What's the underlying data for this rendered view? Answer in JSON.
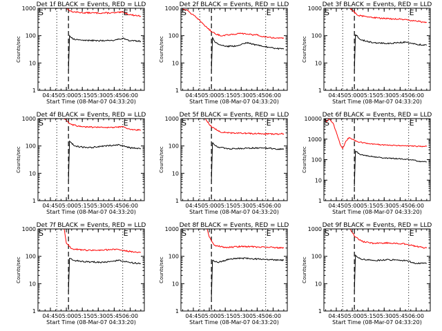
{
  "chart_data": [
    {
      "type": "line",
      "title": "Det 1f BLACK = Events, RED = LLD",
      "xlabel": "Start Time (08-Mar-07 04:33:20)",
      "ylabel": "Counts/sec",
      "ylog": true,
      "ylim": [
        1,
        1000
      ],
      "yticks": [
        "1",
        "10",
        "100",
        "1000"
      ],
      "xlim": [
        "04:33:20",
        "06:13:20"
      ],
      "xticks": [
        "04:45",
        "05:00",
        "05:15",
        "05:30",
        "05:45",
        "06:00"
      ],
      "markers": [
        {
          "label": "S",
          "at": "04:33:20"
        },
        {
          "label": "E",
          "at": "05:53:00"
        }
      ],
      "dotted_lines": [
        "04:51:00",
        "05:53:00"
      ],
      "dashed_line": "05:02:00",
      "grid": false,
      "series": [
        {
          "color": "#ff0000",
          "points": [
            [
              "05:00",
              1000
            ],
            [
              "05:05",
              750
            ],
            [
              "05:15",
              690
            ],
            [
              "05:30",
              670
            ],
            [
              "05:45",
              680
            ],
            [
              "05:53",
              720
            ],
            [
              "06:00",
              580
            ],
            [
              "06:10",
              520
            ]
          ]
        },
        {
          "color": "#000000",
          "points": [
            [
              "05:02",
              5
            ],
            [
              "05:03",
              100
            ],
            [
              "05:06",
              75
            ],
            [
              "05:15",
              68
            ],
            [
              "05:30",
              65
            ],
            [
              "05:45",
              68
            ],
            [
              "05:53",
              80
            ],
            [
              "06:00",
              65
            ],
            [
              "06:10",
              62
            ]
          ]
        }
      ]
    },
    {
      "type": "line",
      "title": "Det 2f BLACK = Events, RED = LLD",
      "xlabel": "Start Time (08-Mar-07 04:33:20)",
      "ylabel": "Counts/sec",
      "ylog": true,
      "ylim": [
        1,
        1000
      ],
      "yticks": [
        "1",
        "10",
        "100",
        "1000"
      ],
      "xlim": [
        "04:33:20",
        "06:13:20"
      ],
      "xticks": [
        "04:45",
        "05:00",
        "05:15",
        "05:30",
        "05:45",
        "06:00"
      ],
      "markers": [
        {
          "label": "S",
          "at": "04:33:20"
        },
        {
          "label": "E",
          "at": "05:53:00"
        }
      ],
      "dotted_lines": [
        "04:51:00",
        "05:53:00"
      ],
      "dashed_line": "05:02:00",
      "grid": false,
      "series": [
        {
          "color": "#ff0000",
          "points": [
            [
              "04:34",
              1000
            ],
            [
              "04:40",
              800
            ],
            [
              "04:48",
              450
            ],
            [
              "04:55",
              250
            ],
            [
              "05:02",
              140
            ],
            [
              "05:10",
              100
            ],
            [
              "05:20",
              110
            ],
            [
              "05:30",
              120
            ],
            [
              "05:45",
              105
            ],
            [
              "05:55",
              85
            ],
            [
              "06:10",
              80
            ]
          ]
        },
        {
          "color": "#000000",
          "points": [
            [
              "05:02",
              5
            ],
            [
              "05:03",
              85
            ],
            [
              "05:06",
              55
            ],
            [
              "05:15",
              40
            ],
            [
              "05:25",
              42
            ],
            [
              "05:35",
              55
            ],
            [
              "05:45",
              45
            ],
            [
              "06:00",
              35
            ],
            [
              "06:10",
              32
            ]
          ]
        }
      ]
    },
    {
      "type": "line",
      "title": "Det 3f BLACK = Events, RED = LLD",
      "xlabel": "Start Time (08-Mar-07 04:33:20)",
      "ylabel": "Counts/sec",
      "ylog": true,
      "ylim": [
        1,
        1000
      ],
      "yticks": [
        "1",
        "10",
        "100",
        "1000"
      ],
      "xlim": [
        "04:33:20",
        "06:13:20"
      ],
      "xticks": [
        "04:45",
        "05:00",
        "05:15",
        "05:30",
        "05:45",
        "06:00"
      ],
      "markers": [
        {
          "label": "S",
          "at": "04:33:20"
        },
        {
          "label": "E",
          "at": "05:53:00"
        }
      ],
      "dotted_lines": [
        "04:51:00",
        "05:53:00"
      ],
      "dashed_line": "05:02:00",
      "grid": false,
      "series": [
        {
          "color": "#ff0000",
          "points": [
            [
              "04:58",
              1000
            ],
            [
              "05:05",
              560
            ],
            [
              "05:15",
              480
            ],
            [
              "05:30",
              420
            ],
            [
              "05:45",
              400
            ],
            [
              "06:00",
              340
            ],
            [
              "06:10",
              300
            ]
          ]
        },
        {
          "color": "#000000",
          "points": [
            [
              "05:02",
              5
            ],
            [
              "05:03",
              110
            ],
            [
              "05:08",
              70
            ],
            [
              "05:20",
              55
            ],
            [
              "05:35",
              52
            ],
            [
              "05:50",
              58
            ],
            [
              "06:00",
              48
            ],
            [
              "06:10",
              45
            ]
          ]
        }
      ]
    },
    {
      "type": "line",
      "title": "Det 4f BLACK = Events, RED = LLD",
      "xlabel": "Start Time (08-Mar-07 04:33:20)",
      "ylabel": "Counts/sec",
      "ylog": true,
      "ylim": [
        1,
        1000
      ],
      "yticks": [
        "1",
        "10",
        "100",
        "1000"
      ],
      "xlim": [
        "04:33:20",
        "06:13:20"
      ],
      "xticks": [
        "04:45",
        "05:00",
        "05:15",
        "05:30",
        "05:45",
        "06:00"
      ],
      "markers": [
        {
          "label": "S",
          "at": "04:33:20"
        },
        {
          "label": "E",
          "at": "05:53:00"
        }
      ],
      "dotted_lines": [
        "04:51:00",
        "05:53:00"
      ],
      "dashed_line": "05:02:00",
      "grid": false,
      "series": [
        {
          "color": "#ff0000",
          "points": [
            [
              "04:58",
              1000
            ],
            [
              "05:05",
              600
            ],
            [
              "05:15",
              500
            ],
            [
              "05:30",
              480
            ],
            [
              "05:45",
              470
            ],
            [
              "05:53",
              520
            ],
            [
              "06:00",
              400
            ],
            [
              "06:10",
              380
            ]
          ]
        },
        {
          "color": "#000000",
          "points": [
            [
              "05:02",
              5
            ],
            [
              "05:03",
              150
            ],
            [
              "05:08",
              100
            ],
            [
              "05:20",
              85
            ],
            [
              "05:35",
              100
            ],
            [
              "05:50",
              110
            ],
            [
              "06:00",
              85
            ],
            [
              "06:10",
              80
            ]
          ]
        }
      ]
    },
    {
      "type": "line",
      "title": "Det 5f BLACK = Events, RED = LLD",
      "xlabel": "Start Time (08-Mar-07 04:33:20)",
      "ylabel": "Counts/sec",
      "ylog": true,
      "ylim": [
        1,
        1000
      ],
      "yticks": [
        "1",
        "10",
        "100",
        "1000"
      ],
      "xlim": [
        "04:33:20",
        "06:13:20"
      ],
      "xticks": [
        "04:45",
        "05:00",
        "05:15",
        "05:30",
        "05:45",
        "06:00"
      ],
      "markers": [
        {
          "label": "S",
          "at": "04:33:20"
        },
        {
          "label": "E",
          "at": "05:53:00"
        }
      ],
      "dotted_lines": [
        "04:51:00",
        "05:53:00"
      ],
      "dashed_line": "05:02:00",
      "grid": false,
      "series": [
        {
          "color": "#ff0000",
          "points": [
            [
              "04:56",
              1000
            ],
            [
              "05:02",
              500
            ],
            [
              "05:10",
              330
            ],
            [
              "05:20",
              300
            ],
            [
              "05:35",
              290
            ],
            [
              "05:50",
              280
            ],
            [
              "06:00",
              270
            ],
            [
              "06:10",
              280
            ]
          ]
        },
        {
          "color": "#000000",
          "points": [
            [
              "05:02",
              5
            ],
            [
              "05:03",
              130
            ],
            [
              "05:08",
              90
            ],
            [
              "05:20",
              78
            ],
            [
              "05:35",
              82
            ],
            [
              "05:50",
              85
            ],
            [
              "06:00",
              80
            ],
            [
              "06:10",
              75
            ]
          ]
        }
      ]
    },
    {
      "type": "line",
      "title": "Det 6f BLACK = Events, RED = LLD",
      "xlabel": "Start Time (08-Mar-07 04:33:20)",
      "ylabel": "Counts/sec",
      "ylog": true,
      "ylim": [
        1,
        10000
      ],
      "yticks": [
        "1",
        "10",
        "100",
        "1000",
        "10000"
      ],
      "xlim": [
        "04:33:20",
        "06:13:20"
      ],
      "xticks": [
        "04:45",
        "05:00",
        "05:15",
        "05:30",
        "05:45",
        "06:00"
      ],
      "markers": [
        {
          "label": "S",
          "at": "04:33:20"
        },
        {
          "label": "E",
          "at": "05:53:00"
        }
      ],
      "dotted_lines": [
        "04:51:00",
        "05:53:00"
      ],
      "dashed_line": "05:02:00",
      "grid": false,
      "series": [
        {
          "color": "#ff0000",
          "points": [
            [
              "04:34",
              9000
            ],
            [
              "04:36",
              7000
            ],
            [
              "04:38",
              10000
            ],
            [
              "04:42",
              6000
            ],
            [
              "04:46",
              1500
            ],
            [
              "04:49",
              500
            ],
            [
              "04:51",
              350
            ],
            [
              "04:54",
              800
            ],
            [
              "04:57",
              1200
            ],
            [
              "05:00",
              1000
            ],
            [
              "05:05",
              750
            ],
            [
              "05:15",
              600
            ],
            [
              "05:30",
              520
            ],
            [
              "05:45",
              480
            ],
            [
              "06:00",
              450
            ],
            [
              "06:10",
              440
            ]
          ]
        },
        {
          "color": "#000000",
          "points": [
            [
              "05:02",
              5
            ],
            [
              "05:03",
              260
            ],
            [
              "05:08",
              170
            ],
            [
              "05:20",
              140
            ],
            [
              "05:30",
              120
            ],
            [
              "05:45",
              110
            ],
            [
              "05:55",
              100
            ],
            [
              "06:05",
              80
            ],
            [
              "06:10",
              78
            ]
          ]
        }
      ]
    },
    {
      "type": "line",
      "title": "Det 7f BLACK = Events, RED = LLD",
      "xlabel": "Start Time (08-Mar-07 04:33:20)",
      "ylabel": "Counts/sec",
      "ylog": true,
      "ylim": [
        1,
        1000
      ],
      "yticks": [
        "1",
        "10",
        "100",
        "1000"
      ],
      "xlim": [
        "04:33:20",
        "06:13:20"
      ],
      "xticks": [
        "04:45",
        "05:00",
        "05:15",
        "05:30",
        "05:45",
        "06:00"
      ],
      "markers": [
        {
          "label": "S",
          "at": "04:33:20"
        },
        {
          "label": "E",
          "at": "05:53:00"
        }
      ],
      "dotted_lines": [
        "04:51:00",
        "05:53:00"
      ],
      "dashed_line": "05:02:00",
      "grid": false,
      "series": [
        {
          "color": "#ff0000",
          "points": [
            [
              "04:58",
              1000
            ],
            [
              "05:00",
              300
            ],
            [
              "05:05",
              190
            ],
            [
              "05:15",
              170
            ],
            [
              "05:30",
              165
            ],
            [
              "05:45",
              180
            ],
            [
              "06:00",
              150
            ],
            [
              "06:10",
              140
            ]
          ]
        },
        {
          "color": "#000000",
          "points": [
            [
              "05:02",
              5
            ],
            [
              "05:03",
              85
            ],
            [
              "05:08",
              70
            ],
            [
              "05:20",
              62
            ],
            [
              "05:35",
              60
            ],
            [
              "05:50",
              72
            ],
            [
              "06:00",
              58
            ],
            [
              "06:10",
              55
            ]
          ]
        }
      ]
    },
    {
      "type": "line",
      "title": "Det 8f BLACK = Events, RED = LLD",
      "xlabel": "Start Time (08-Mar-07 04:33:20)",
      "ylabel": "Counts/sec",
      "ylog": true,
      "ylim": [
        1,
        1000
      ],
      "yticks": [
        "1",
        "10",
        "100",
        "1000"
      ],
      "xlim": [
        "04:33:20",
        "06:13:20"
      ],
      "xticks": [
        "04:45",
        "05:00",
        "05:15",
        "05:30",
        "05:45",
        "06:00"
      ],
      "markers": [
        {
          "label": "S",
          "at": "04:33:20"
        },
        {
          "label": "E",
          "at": "05:53:00"
        }
      ],
      "dotted_lines": [
        "04:51:00",
        "05:53:00"
      ],
      "dashed_line": "05:02:00",
      "grid": false,
      "series": [
        {
          "color": "#ff0000",
          "points": [
            [
              "04:58",
              1000
            ],
            [
              "05:00",
              500
            ],
            [
              "05:05",
              250
            ],
            [
              "05:15",
              210
            ],
            [
              "05:30",
              230
            ],
            [
              "05:45",
              220
            ],
            [
              "06:00",
              210
            ],
            [
              "06:10",
              200
            ]
          ]
        },
        {
          "color": "#000000",
          "points": [
            [
              "05:02",
              3
            ],
            [
              "05:03",
              70
            ],
            [
              "05:08",
              60
            ],
            [
              "05:20",
              80
            ],
            [
              "05:30",
              85
            ],
            [
              "05:45",
              80
            ],
            [
              "06:00",
              75
            ],
            [
              "06:10",
              72
            ]
          ]
        }
      ]
    },
    {
      "type": "line",
      "title": "Det 9f BLACK = Events, RED = LLD",
      "xlabel": "Start Time (08-Mar-07 04:33:20)",
      "ylabel": "Counts/sec",
      "ylog": true,
      "ylim": [
        1,
        1000
      ],
      "yticks": [
        "1",
        "10",
        "100",
        "1000"
      ],
      "xlim": [
        "04:33:20",
        "06:13:20"
      ],
      "xticks": [
        "04:45",
        "05:00",
        "05:15",
        "05:30",
        "05:45",
        "06:00"
      ],
      "markers": [
        {
          "label": "S",
          "at": "04:33:20"
        },
        {
          "label": "E",
          "at": "05:53:00"
        }
      ],
      "dotted_lines": [
        "04:51:00",
        "05:53:00"
      ],
      "dashed_line": "05:02:00",
      "grid": false,
      "series": [
        {
          "color": "#ff0000",
          "points": [
            [
              "04:58",
              1000
            ],
            [
              "05:03",
              500
            ],
            [
              "05:10",
              340
            ],
            [
              "05:20",
              300
            ],
            [
              "05:35",
              310
            ],
            [
              "05:50",
              280
            ],
            [
              "06:00",
              230
            ],
            [
              "06:10",
              200
            ]
          ]
        },
        {
          "color": "#000000",
          "points": [
            [
              "05:02",
              5
            ],
            [
              "05:03",
              110
            ],
            [
              "05:08",
              80
            ],
            [
              "05:20",
              70
            ],
            [
              "05:35",
              75
            ],
            [
              "05:50",
              70
            ],
            [
              "06:00",
              55
            ],
            [
              "06:10",
              55
            ]
          ]
        }
      ]
    }
  ]
}
